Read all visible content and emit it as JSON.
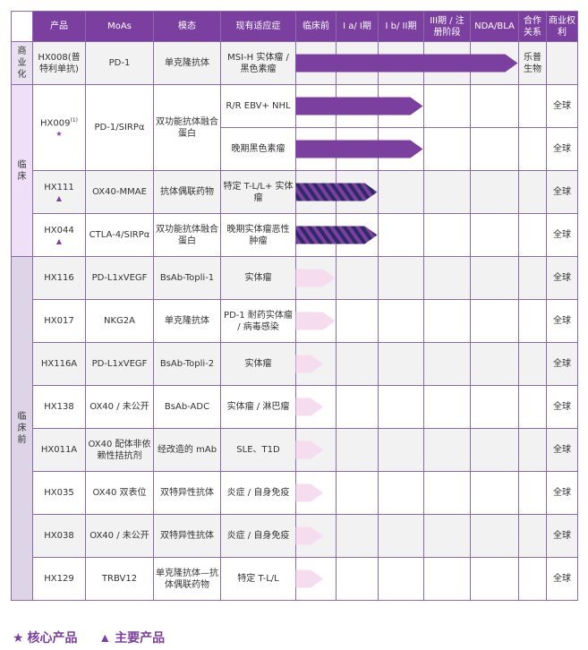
{
  "colors": {
    "header_bg": "#7b3f9f",
    "border": "#8a6aa8",
    "bar_dark": "#7b3f9f",
    "bar_light": "#f5dcee",
    "bar_striped_dark": "#2e2a66",
    "bar_striped_light": "#7b3f9f",
    "stage_commercial": "#e8e1ef",
    "stage_clinical": "#efe0f7",
    "stage_preclinical": "#ddd4e7"
  },
  "header": {
    "product": "产品",
    "moa": "MoAs",
    "modality": "模态",
    "indication": "现有适应症",
    "phases": [
      "临床前",
      "I a/ I期",
      "I b/ II期",
      "III期 / 注册阶段",
      "NDA/BLA"
    ],
    "partner": "合作关系",
    "rights": "商业权利"
  },
  "stages": {
    "commercial": "商业化",
    "clinical": "临床",
    "preclinical": "临床前"
  },
  "legend": {
    "core": "★ 核心产品",
    "main": "▲ 主要产品"
  },
  "chart_data": {
    "type": "table",
    "phases": [
      "临床前",
      "I a/ I期",
      "I b/ II期",
      "III期 / 注册阶段",
      "NDA/BLA"
    ],
    "rows": [
      {
        "stage": "商业化",
        "product": "HX008(普特利单抗)",
        "marker": "",
        "note": "",
        "moa": "PD-1",
        "modality": "单克隆抗体",
        "indication": "MSI-H 实体瘤 / 黑色素瘤",
        "progress": 5.0,
        "style": "solid",
        "partner": "乐普生物",
        "rights": ""
      },
      {
        "stage": "临床",
        "product": "HX009",
        "marker": "★",
        "note": "(1)",
        "moa": "PD-1/SIRPα",
        "modality": "双功能抗体融合蛋白",
        "indication": "R/R EBV+ NHL",
        "progress": 3.0,
        "style": "solid",
        "partner": "",
        "rights": "全球"
      },
      {
        "stage": "临床",
        "product": "HX009",
        "marker": "★",
        "note": "(1)",
        "moa": "PD-1/SIRPα",
        "modality": "双功能抗体融合蛋白",
        "indication": "晚期黑色素瘤",
        "progress": 3.0,
        "style": "solid",
        "partner": "",
        "rights": "全球"
      },
      {
        "stage": "临床",
        "product": "HX111",
        "marker": "▲",
        "note": "",
        "moa": "OX40-MMAE",
        "modality": "抗体偶联药物",
        "indication": "特定 T-L/L+ 实体瘤",
        "progress": 2.0,
        "style": "striped",
        "partner": "",
        "rights": "全球"
      },
      {
        "stage": "临床",
        "product": "HX044",
        "marker": "▲",
        "note": "",
        "moa": "CTLA-4/SIRPα",
        "modality": "双功能抗体融合蛋白",
        "indication": "晚期实体瘤恶性肿瘤",
        "progress": 2.0,
        "style": "striped",
        "partner": "",
        "rights": "全球"
      },
      {
        "stage": "临床前",
        "product": "HX116",
        "marker": "",
        "note": "",
        "moa": "PD-L1xVEGF",
        "modality": "BsAb-Topli-1",
        "indication": "实体瘤",
        "progress": 1.0,
        "style": "light",
        "partner": "",
        "rights": "全球"
      },
      {
        "stage": "临床前",
        "product": "HX017",
        "marker": "",
        "note": "",
        "moa": "NKG2A",
        "modality": "单克隆抗体",
        "indication": "PD-1 耐药实体瘤 / 病毒感染",
        "progress": 1.0,
        "style": "light",
        "partner": "",
        "rights": "全球"
      },
      {
        "stage": "临床前",
        "product": "HX116A",
        "marker": "",
        "note": "",
        "moa": "PD-L1xVEGF",
        "modality": "BsAb-Topli-2",
        "indication": "实体瘤",
        "progress": 0.7,
        "style": "light",
        "partner": "",
        "rights": "全球"
      },
      {
        "stage": "临床前",
        "product": "HX138",
        "marker": "",
        "note": "",
        "moa": "OX40 / 未公开",
        "modality": "BsAb-ADC",
        "indication": "实体瘤 / 淋巴瘤",
        "progress": 0.7,
        "style": "light",
        "partner": "",
        "rights": "全球"
      },
      {
        "stage": "临床前",
        "product": "HX011A",
        "marker": "",
        "note": "",
        "moa": "OX40 配体非依赖性拮抗剂",
        "modality": "经改造的 mAb",
        "indication": "SLE、T1D",
        "progress": 0.7,
        "style": "light",
        "partner": "",
        "rights": "全球"
      },
      {
        "stage": "临床前",
        "product": "HX035",
        "marker": "",
        "note": "",
        "moa": "OX40 双表位",
        "modality": "双特异性抗体",
        "indication": "炎症 / 自身免疫",
        "progress": 0.7,
        "style": "light",
        "partner": "",
        "rights": "全球"
      },
      {
        "stage": "临床前",
        "product": "HX038",
        "marker": "",
        "note": "",
        "moa": "OX40 / 未公开",
        "modality": "双特异性抗体",
        "indication": "炎症 / 自身免疫",
        "progress": 0.7,
        "style": "light",
        "partner": "",
        "rights": "全球"
      },
      {
        "stage": "临床前",
        "product": "HX129",
        "marker": "",
        "note": "",
        "moa": "TRBV12",
        "modality": "单克隆抗体—抗体偶联药物",
        "indication": "特定 T-L/L",
        "progress": 0.7,
        "style": "light",
        "partner": "",
        "rights": "全球"
      }
    ]
  }
}
